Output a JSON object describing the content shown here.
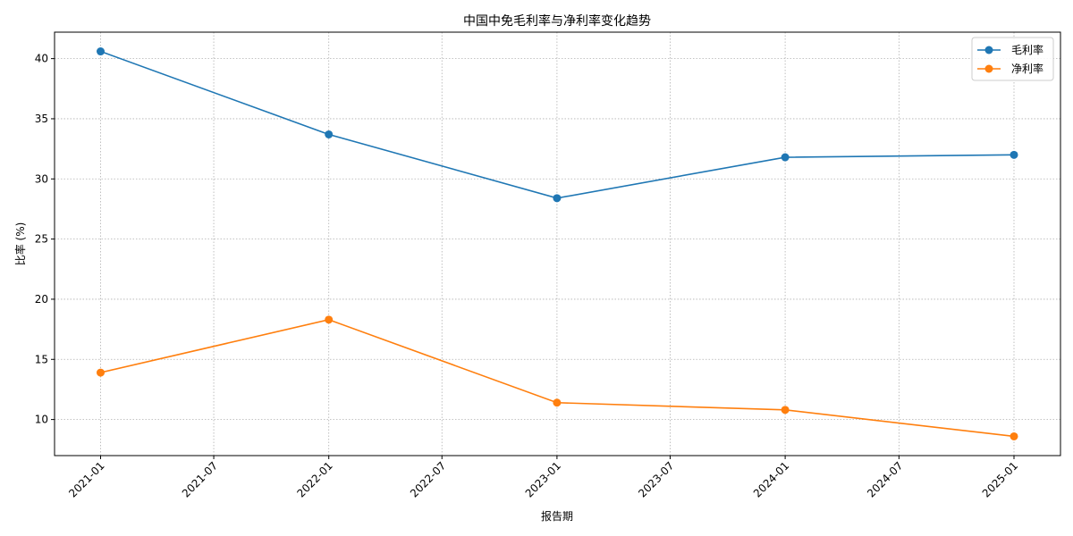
{
  "chart_data": {
    "type": "line",
    "title": "中国中免毛利率与净利率变化趋势",
    "xlabel": "报告期",
    "ylabel": "比率 (%)",
    "x": [
      "2021-01-01",
      "2022-01-01",
      "2023-01-01",
      "2024-01-01",
      "2025-01-01"
    ],
    "x_ticks": [
      "2021-01",
      "2021-07",
      "2022-01",
      "2022-07",
      "2023-01",
      "2023-07",
      "2024-01",
      "2024-07",
      "2025-01"
    ],
    "y_ticks": [
      10,
      15,
      20,
      25,
      30,
      35,
      40
    ],
    "ylim": [
      7,
      42.2
    ],
    "grid": true,
    "legend_position": "top-right",
    "series": [
      {
        "name": "毛利率",
        "color": "#1f77b4",
        "values": [
          40.6,
          33.7,
          28.4,
          31.8,
          32.0
        ]
      },
      {
        "name": "净利率",
        "color": "#ff7f0e",
        "values": [
          13.9,
          18.3,
          11.4,
          10.8,
          8.6
        ]
      }
    ]
  }
}
